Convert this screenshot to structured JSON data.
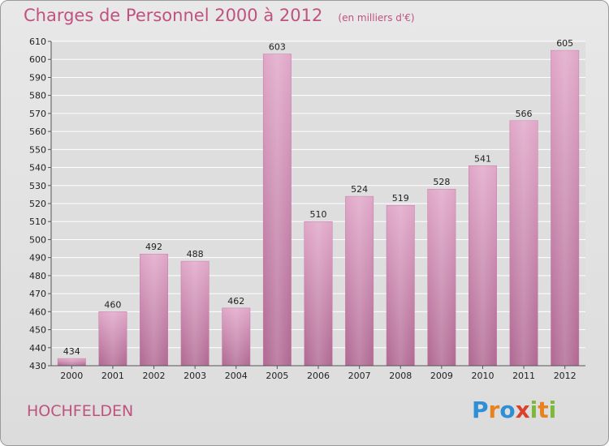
{
  "header": {
    "title": "Charges de Personnel 2000 à 2012",
    "subtitle": "(en milliers d'€)"
  },
  "footer": {
    "location": "HOCHFELDEN",
    "logo": {
      "letters": [
        "P",
        "r",
        "o",
        "x",
        "i",
        "t",
        "i"
      ],
      "colors": [
        "#2e8fd6",
        "#e8821e",
        "#2e8fd6",
        "#d9432c",
        "#7cb83a",
        "#e8821e",
        "#7cb83a"
      ]
    }
  },
  "colors": {
    "bar": "#cf86b1",
    "bar_dark": "#b46593",
    "text": "#c0527f"
  },
  "chart_data": {
    "type": "bar",
    "title": "Charges de Personnel 2000 à 2012",
    "subtitle": "(en milliers d'€)",
    "categories": [
      "2000",
      "2001",
      "2002",
      "2003",
      "2004",
      "2005",
      "2006",
      "2007",
      "2008",
      "2009",
      "2010",
      "2011",
      "2012"
    ],
    "values": [
      434,
      460,
      492,
      488,
      462,
      603,
      510,
      524,
      519,
      528,
      541,
      566,
      605
    ],
    "ylim": [
      430,
      610
    ],
    "yticks": [
      430,
      440,
      450,
      460,
      470,
      480,
      490,
      500,
      510,
      520,
      530,
      540,
      550,
      560,
      570,
      580,
      590,
      600,
      610
    ],
    "grid": true,
    "legend": "none",
    "xlabel": "",
    "ylabel": ""
  }
}
